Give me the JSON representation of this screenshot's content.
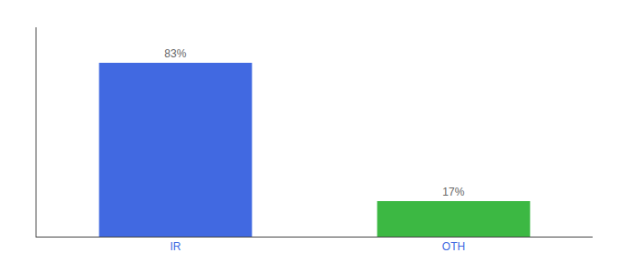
{
  "chart_data": {
    "type": "bar",
    "categories": [
      "IR",
      "OTH"
    ],
    "values": [
      83,
      17
    ],
    "value_labels": [
      "83%",
      "17%"
    ],
    "colors": [
      "#4169E1",
      "#3CB843"
    ],
    "ylim": [
      0,
      100
    ],
    "yticks": [],
    "data_labels": true,
    "tick_labels": "x",
    "grid": false
  }
}
